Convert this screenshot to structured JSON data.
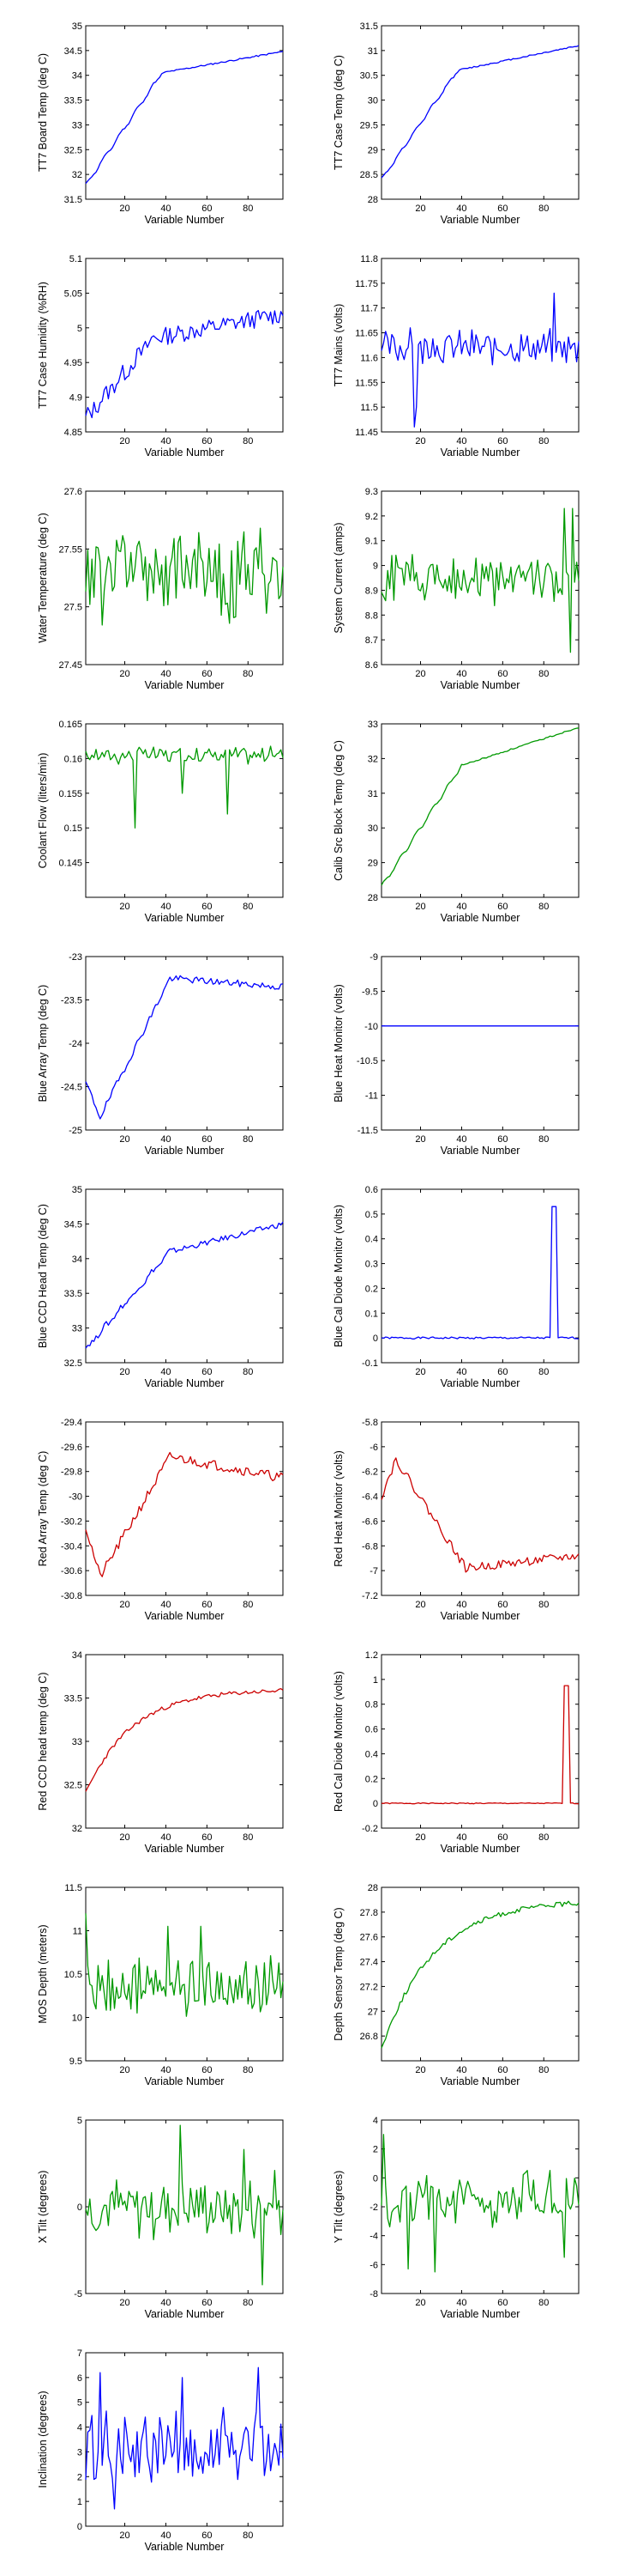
{
  "figure": {
    "colors": {
      "blue": "#0000ff",
      "green": "#009900",
      "red": "#cc0000",
      "axis": "#000000"
    }
  },
  "chart_data": [
    {
      "type": "line",
      "color": "blue",
      "xlabel": "Variable Number",
      "ylabel": "TT7 Board Temp (deg C)",
      "xlim": [
        1,
        97
      ],
      "ylim": [
        31.5,
        35
      ],
      "xticks": [
        20,
        40,
        60,
        80
      ],
      "yticks": [
        31.5,
        32,
        32.5,
        33,
        33.5,
        34,
        34.5,
        35
      ],
      "ytick_labels": [
        "31.5",
        "32",
        "32.5",
        "33",
        "33.5",
        "34",
        "34.5",
        "35"
      ],
      "series": [
        {
          "pattern": "rise",
          "start": 31.78,
          "mid": 34.05,
          "end": 34.48,
          "breakpoint": 38,
          "noise": 0.015,
          "seed": 11
        }
      ]
    },
    {
      "type": "line",
      "color": "blue",
      "xlabel": "Variable Number",
      "ylabel": "TT7 Case Temp (deg C)",
      "xlim": [
        1,
        97
      ],
      "ylim": [
        28,
        31.5
      ],
      "xticks": [
        20,
        40,
        60,
        80
      ],
      "yticks": [
        28,
        28.5,
        29,
        29.5,
        30,
        30.5,
        31,
        31.5
      ],
      "ytick_labels": [
        "28",
        "28.5",
        "29",
        "29.5",
        "30",
        "30.5",
        "31",
        "31.5"
      ],
      "series": [
        {
          "pattern": "rise",
          "start": 28.4,
          "mid": 30.6,
          "end": 31.1,
          "breakpoint": 38,
          "noise": 0.015,
          "seed": 12
        }
      ]
    },
    {
      "type": "line",
      "color": "blue",
      "xlabel": "Variable Number",
      "ylabel": "TT7 Case Humidity (%RH)",
      "xlim": [
        1,
        97
      ],
      "ylim": [
        4.85,
        5.1
      ],
      "xticks": [
        20,
        40,
        60,
        80
      ],
      "yticks": [
        4.85,
        4.9,
        4.95,
        5,
        5.05,
        5.1
      ],
      "ytick_labels": [
        "4.85",
        "4.9",
        "4.95",
        "5",
        "5.05",
        "5.1"
      ],
      "series": [
        {
          "pattern": "rise",
          "start": 4.87,
          "mid": 4.985,
          "end": 5.02,
          "breakpoint": 34,
          "noise": 0.013,
          "seed": 13
        }
      ]
    },
    {
      "type": "line",
      "color": "blue",
      "xlabel": "Variable Number",
      "ylabel": "TT7 Mains  (volts)",
      "xlim": [
        1,
        97
      ],
      "ylim": [
        11.45,
        11.8
      ],
      "xticks": [
        20,
        40,
        60,
        80
      ],
      "yticks": [
        11.45,
        11.5,
        11.55,
        11.6,
        11.65,
        11.7,
        11.75,
        11.8
      ],
      "ytick_labels": [
        "11.45",
        "11.5",
        "11.55",
        "11.6",
        "11.65",
        "11.7",
        "11.75",
        "11.8"
      ],
      "series": [
        {
          "pattern": "noise",
          "mean": 11.62,
          "amp": 0.035,
          "seed": 14,
          "spikes": [
            [
              17,
              11.46
            ],
            [
              18,
              11.5
            ],
            [
              85,
              11.73
            ]
          ]
        }
      ]
    },
    {
      "type": "line",
      "color": "green",
      "xlabel": "Variable Number",
      "ylabel": "Water Temperature (deg C)",
      "xlim": [
        1,
        97
      ],
      "ylim": [
        27.45,
        27.6
      ],
      "xticks": [
        20,
        40,
        60,
        80
      ],
      "yticks": [
        27.45,
        27.5,
        27.55,
        27.6
      ],
      "ytick_labels": [
        "27.45",
        "27.5",
        "27.55",
        "27.6"
      ],
      "series": [
        {
          "pattern": "noise",
          "mean": 27.53,
          "amp": 0.04,
          "seed": 15,
          "spikes": []
        }
      ]
    },
    {
      "type": "line",
      "color": "green",
      "xlabel": "Variable Number",
      "ylabel": "System Current  (amps)",
      "xlim": [
        1,
        97
      ],
      "ylim": [
        8.6,
        9.3
      ],
      "xticks": [
        20,
        40,
        60,
        80
      ],
      "yticks": [
        8.6,
        8.7,
        8.8,
        8.9,
        9,
        9.1,
        9.2,
        9.3
      ],
      "ytick_labels": [
        "8.6",
        "8.7",
        "8.8",
        "8.9",
        "9",
        "9.1",
        "9.2",
        "9.3"
      ],
      "series": [
        {
          "pattern": "noise",
          "mean": 8.95,
          "amp": 0.1,
          "seed": 16,
          "spikes": [
            [
              90,
              9.23
            ],
            [
              94,
              9.23
            ],
            [
              93,
              8.65
            ]
          ]
        }
      ]
    },
    {
      "type": "line",
      "color": "green",
      "xlabel": "Variable Number",
      "ylabel": "Coolant Flow  (liters/min)",
      "xlim": [
        1,
        97
      ],
      "ylim": [
        0.14,
        0.165
      ],
      "xticks": [
        20,
        40,
        60,
        80
      ],
      "yticks": [
        0.145,
        0.15,
        0.155,
        0.16,
        0.165
      ],
      "ytick_labels": [
        "0.145",
        "0.15",
        "0.155",
        "0.16",
        "0.165"
      ],
      "series": [
        {
          "pattern": "noise",
          "mean": 0.1605,
          "amp": 0.0012,
          "seed": 17,
          "spikes": [
            [
              25,
              0.15
            ],
            [
              70,
              0.152
            ],
            [
              48,
              0.155
            ]
          ]
        }
      ]
    },
    {
      "type": "line",
      "color": "green",
      "xlabel": "Variable Number",
      "ylabel": "Calib Src Block Temp (deg C)",
      "xlim": [
        1,
        97
      ],
      "ylim": [
        28,
        33
      ],
      "xticks": [
        20,
        40,
        60,
        80
      ],
      "yticks": [
        28,
        29,
        30,
        31,
        32,
        33
      ],
      "ytick_labels": [
        "28",
        "29",
        "30",
        "31",
        "32",
        "33"
      ],
      "series": [
        {
          "pattern": "rise",
          "start": 28.3,
          "mid": 31.8,
          "end": 32.9,
          "breakpoint": 40,
          "noise": 0.02,
          "seed": 18
        }
      ]
    },
    {
      "type": "line",
      "color": "blue",
      "xlabel": "Variable Number",
      "ylabel": "Blue Array Temp (deg C)",
      "xlim": [
        1,
        97
      ],
      "ylim": [
        -25,
        -23
      ],
      "xticks": [
        20,
        40,
        60,
        80
      ],
      "yticks": [
        -25,
        -24.5,
        -24,
        -23.5,
        -23
      ],
      "ytick_labels": [
        "-25",
        "-24.5",
        "-24",
        "-23.5",
        "-23"
      ],
      "series": [
        {
          "pattern": "dipRise",
          "start": -24.45,
          "low": -24.85,
          "lowAt": 8,
          "mid": -23.25,
          "end": -23.35,
          "breakpoint": 42,
          "noise": 0.04,
          "seed": 19
        }
      ]
    },
    {
      "type": "line",
      "color": "blue",
      "xlabel": "Variable Number",
      "ylabel": "Blue Heat Monitor  (volts)",
      "xlim": [
        1,
        97
      ],
      "ylim": [
        -11.5,
        -9
      ],
      "xticks": [
        20,
        40,
        60,
        80
      ],
      "yticks": [
        -11.5,
        -11,
        -10.5,
        -10,
        -9.5,
        -9
      ],
      "ytick_labels": [
        "-11.5",
        "-11",
        "-10.5",
        "-10",
        "-9.5",
        "-9"
      ],
      "series": [
        {
          "pattern": "flat",
          "value": -10
        }
      ]
    },
    {
      "type": "line",
      "color": "blue",
      "xlabel": "Variable Number",
      "ylabel": "Blue CCD Head Temp (deg C)",
      "xlim": [
        1,
        97
      ],
      "ylim": [
        32.5,
        35
      ],
      "xticks": [
        20,
        40,
        60,
        80
      ],
      "yticks": [
        32.5,
        33,
        33.5,
        34,
        34.5,
        35
      ],
      "ytick_labels": [
        "32.5",
        "33",
        "33.5",
        "34",
        "34.5",
        "35"
      ],
      "series": [
        {
          "pattern": "rise",
          "start": 32.7,
          "mid": 34.1,
          "end": 34.5,
          "breakpoint": 42,
          "noise": 0.04,
          "seed": 20
        }
      ]
    },
    {
      "type": "line",
      "color": "blue",
      "xlabel": "Variable Number",
      "ylabel": "Blue Cal Diode Monitor  (volts)",
      "xlim": [
        1,
        97
      ],
      "ylim": [
        -0.1,
        0.6
      ],
      "xticks": [
        20,
        40,
        60,
        80
      ],
      "yticks": [
        -0.1,
        0,
        0.1,
        0.2,
        0.3,
        0.4,
        0.5,
        0.6
      ],
      "ytick_labels": [
        "-0.1",
        "0",
        "0.1",
        "0.2",
        "0.3",
        "0.4",
        "0.5",
        "0.6"
      ],
      "series": [
        {
          "pattern": "pulse",
          "base": 0,
          "peak": 0.53,
          "from": 84,
          "to": 86
        }
      ]
    },
    {
      "type": "line",
      "color": "red",
      "xlabel": "Variable Number",
      "ylabel": "Red Array Temp (deg C)",
      "xlim": [
        1,
        97
      ],
      "ylim": [
        -30.8,
        -29.4
      ],
      "xticks": [
        20,
        40,
        60,
        80
      ],
      "yticks": [
        -30.8,
        -30.6,
        -30.4,
        -30.2,
        -30,
        -29.8,
        -29.6,
        -29.4
      ],
      "ytick_labels": [
        "-30.8",
        "-30.6",
        "-30.4",
        "-30.2",
        "-30",
        "-29.8",
        "-29.6",
        "-29.4"
      ],
      "series": [
        {
          "pattern": "dipRise",
          "start": -30.25,
          "low": -30.65,
          "lowAt": 8,
          "mid": -29.68,
          "end": -29.85,
          "breakpoint": 42,
          "noise": 0.04,
          "seed": 21
        }
      ]
    },
    {
      "type": "line",
      "color": "red",
      "xlabel": "Variable Number",
      "ylabel": "Red Heat Monitor  (volts)",
      "xlim": [
        1,
        97
      ],
      "ylim": [
        -7.2,
        -5.8
      ],
      "xticks": [
        20,
        40,
        60,
        80
      ],
      "yticks": [
        -7.2,
        -7,
        -6.8,
        -6.6,
        -6.4,
        -6.2,
        -6,
        -5.8
      ],
      "ytick_labels": [
        "-7.2",
        "-7",
        "-6.8",
        "-6.6",
        "-6.4",
        "-6.2",
        "-6",
        "-5.8"
      ],
      "series": [
        {
          "pattern": "humpFall",
          "start": -6.4,
          "peak": -6.1,
          "peakAt": 8,
          "end": -6.98,
          "breakpoint": 42,
          "tail": -6.88,
          "noise": 0.035,
          "seed": 22
        }
      ]
    },
    {
      "type": "line",
      "color": "red",
      "xlabel": "Variable Number",
      "ylabel": "Red CCD head temp (deg C)",
      "xlim": [
        1,
        97
      ],
      "ylim": [
        32,
        34
      ],
      "xticks": [
        20,
        40,
        60,
        80
      ],
      "yticks": [
        32,
        32.5,
        33,
        33.5,
        34
      ],
      "ytick_labels": [
        "32",
        "32.5",
        "33",
        "33.5",
        "34"
      ],
      "series": [
        {
          "pattern": "curve",
          "start": 32.4,
          "end": 33.6,
          "rate": 0.045,
          "noise": 0.025,
          "seed": 23
        }
      ]
    },
    {
      "type": "line",
      "color": "red",
      "xlabel": "Variable Number",
      "ylabel": "Red Cal Diode Monitor  (volts)",
      "xlim": [
        1,
        97
      ],
      "ylim": [
        -0.2,
        1.2
      ],
      "xticks": [
        20,
        40,
        60,
        80
      ],
      "yticks": [
        -0.2,
        0,
        0.2,
        0.4,
        0.6,
        0.8,
        1,
        1.2
      ],
      "ytick_labels": [
        "-0.2",
        "0",
        "0.2",
        "0.4",
        "0.6",
        "0.8",
        "1",
        "1.2"
      ],
      "series": [
        {
          "pattern": "pulse",
          "base": 0,
          "peak": 0.95,
          "from": 90,
          "to": 92
        }
      ]
    },
    {
      "type": "line",
      "color": "green",
      "xlabel": "Variable Number",
      "ylabel": "MOS Depth  (meters)",
      "xlim": [
        1,
        97
      ],
      "ylim": [
        9.5,
        11.5
      ],
      "xticks": [
        20,
        40,
        60,
        80
      ],
      "yticks": [
        9.5,
        10,
        10.5,
        11,
        11.5
      ],
      "ytick_labels": [
        "9.5",
        "10",
        "10.5",
        "11",
        "11.5"
      ],
      "series": [
        {
          "pattern": "noise",
          "mean": 10.35,
          "amp": 0.35,
          "seed": 24,
          "spikes": [
            [
              41,
              11.05
            ],
            [
              57,
              11.05
            ],
            [
              1,
              11.2
            ]
          ]
        }
      ]
    },
    {
      "type": "line",
      "color": "green",
      "xlabel": "Variable Number",
      "ylabel": "Depth Sensor Temp (deg C)",
      "xlim": [
        1,
        97
      ],
      "ylim": [
        26.6,
        28
      ],
      "xticks": [
        20,
        40,
        60,
        80
      ],
      "yticks": [
        26.8,
        27,
        27.2,
        27.4,
        27.6,
        27.8,
        28
      ],
      "ytick_labels": [
        "26.8",
        "27",
        "27.2",
        "27.4",
        "27.6",
        "27.8",
        "28"
      ],
      "series": [
        {
          "pattern": "curve",
          "start": 26.7,
          "end": 27.9,
          "rate": 0.04,
          "noise": 0.02,
          "seed": 25
        }
      ]
    },
    {
      "type": "line",
      "color": "green",
      "xlabel": "Variable Number",
      "ylabel": "X Tilt  (degrees)",
      "xlim": [
        1,
        97
      ],
      "ylim": [
        -5,
        5
      ],
      "xticks": [
        20,
        40,
        60,
        80
      ],
      "yticks": [
        -5,
        0,
        5
      ],
      "ytick_labels": [
        "-5",
        "0",
        "5"
      ],
      "series": [
        {
          "pattern": "noise",
          "mean": 0,
          "amp": 1.8,
          "seed": 26,
          "spikes": [
            [
              47,
              4.7
            ],
            [
              87,
              -4.5
            ],
            [
              78,
              3.3
            ]
          ]
        }
      ]
    },
    {
      "type": "line",
      "color": "green",
      "xlabel": "Variable Number",
      "ylabel": "Y Tilt  (degrees)",
      "xlim": [
        1,
        97
      ],
      "ylim": [
        -8,
        4
      ],
      "xticks": [
        20,
        40,
        60,
        80
      ],
      "yticks": [
        -8,
        -6,
        -4,
        -2,
        0,
        2,
        4
      ],
      "ytick_labels": [
        "-8",
        "-6",
        "-4",
        "-2",
        "0",
        "2",
        "4"
      ],
      "series": [
        {
          "pattern": "noise",
          "mean": -1.5,
          "amp": 1.8,
          "seed": 27,
          "spikes": [
            [
              2,
              3.0
            ],
            [
              14,
              -6.3
            ],
            [
              27,
              -6.5
            ],
            [
              90,
              -5.5
            ]
          ]
        }
      ]
    },
    {
      "type": "line",
      "color": "blue",
      "xlabel": "Variable Number",
      "ylabel": "Inclination  (degrees)",
      "xlim": [
        1,
        97
      ],
      "ylim": [
        0,
        7
      ],
      "xticks": [
        20,
        40,
        60,
        80
      ],
      "yticks": [
        0,
        1,
        2,
        3,
        4,
        5,
        6,
        7
      ],
      "ytick_labels": [
        "0",
        "1",
        "2",
        "3",
        "4",
        "5",
        "6",
        "7"
      ],
      "series": [
        {
          "pattern": "noise",
          "mean": 3.2,
          "amp": 1.6,
          "seed": 28,
          "spikes": [
            [
              85,
              6.4
            ],
            [
              8,
              6.2
            ],
            [
              48,
              6.0
            ],
            [
              15,
              0.7
            ]
          ]
        }
      ]
    }
  ]
}
